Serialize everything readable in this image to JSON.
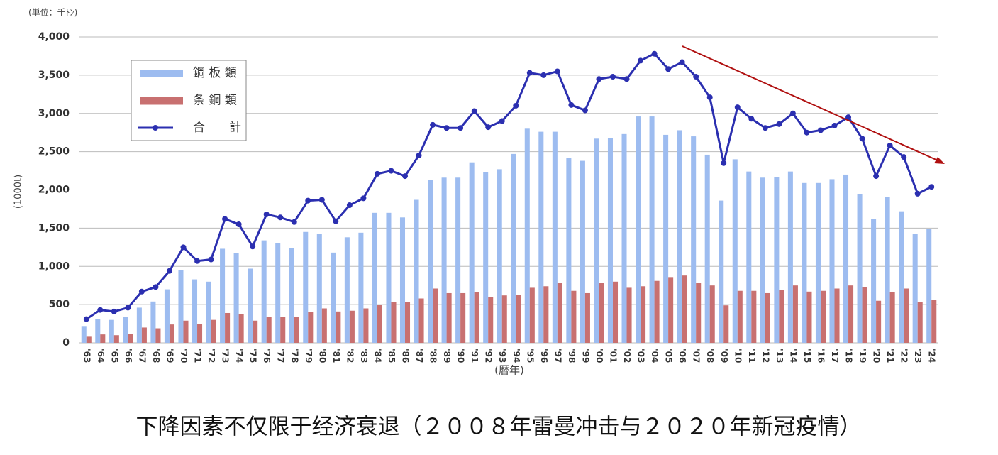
{
  "chart_data": {
    "type": "bar-line",
    "unit_note": "(単位：千ﾄﾝ)",
    "y_label": "(1000t)",
    "x_label": "(暦年)",
    "caption": "下降因素不仅限于经济衰退（２００８年雷曼冲击与２０２０年新冠疫情）",
    "categories": [
      "'63",
      "'64",
      "'65",
      "'66",
      "'67",
      "'68",
      "'69",
      "'70",
      "'71",
      "'72",
      "'73",
      "'74",
      "'75",
      "'76",
      "'77",
      "'78",
      "'79",
      "'80",
      "'81",
      "'82",
      "'83",
      "'84",
      "'85",
      "'86",
      "'87",
      "'88",
      "'89",
      "'90",
      "'91",
      "'92",
      "'93",
      "'94",
      "'95",
      "'96",
      "'97",
      "'98",
      "'99",
      "'00",
      "'01",
      "'02",
      "'03",
      "'04",
      "'05",
      "'06",
      "'07",
      "'08",
      "'09",
      "'10",
      "'11",
      "'12",
      "'13",
      "'14",
      "'15",
      "'16",
      "'17",
      "'18",
      "'19",
      "'20",
      "'21",
      "'22",
      "'23",
      "'24"
    ],
    "series": [
      {
        "name": "鋼 板 類",
        "color": "#9dbcf0",
        "kind": "bar",
        "values": [
          220,
          310,
          300,
          340,
          460,
          540,
          700,
          950,
          830,
          800,
          1230,
          1170,
          970,
          1340,
          1300,
          1240,
          1450,
          1420,
          1180,
          1380,
          1440,
          1700,
          1700,
          1640,
          1870,
          2130,
          2160,
          2160,
          2360,
          2230,
          2270,
          2470,
          2800,
          2760,
          2760,
          2420,
          2380,
          2670,
          2680,
          2730,
          2960,
          2960,
          2720,
          2780,
          2700,
          2460,
          1860,
          2400,
          2240,
          2160,
          2170,
          2240,
          2090,
          2090,
          2140,
          2200,
          1940,
          1620,
          1910,
          1720,
          1420,
          1490
        ]
      },
      {
        "name": "条 鋼 類",
        "color": "#c87070",
        "kind": "bar",
        "values": [
          80,
          110,
          100,
          120,
          200,
          190,
          240,
          290,
          250,
          300,
          390,
          380,
          290,
          340,
          340,
          340,
          400,
          450,
          410,
          420,
          450,
          500,
          530,
          530,
          580,
          710,
          650,
          650,
          660,
          600,
          620,
          630,
          720,
          740,
          780,
          680,
          650,
          780,
          800,
          720,
          740,
          810,
          860,
          880,
          780,
          750,
          490,
          680,
          680,
          650,
          690,
          750,
          670,
          680,
          710,
          750,
          730,
          550,
          660,
          710,
          530,
          560
        ]
      },
      {
        "name": "合　　計",
        "color": "#2b2fb0",
        "kind": "line",
        "values": [
          310,
          430,
          410,
          460,
          670,
          730,
          940,
          1250,
          1070,
          1090,
          1620,
          1550,
          1260,
          1680,
          1640,
          1580,
          1860,
          1870,
          1590,
          1800,
          1890,
          2210,
          2250,
          2180,
          2450,
          2850,
          2810,
          2810,
          3030,
          2820,
          2900,
          3100,
          3530,
          3500,
          3550,
          3110,
          3040,
          3450,
          3480,
          3450,
          3690,
          3780,
          3580,
          3670,
          3480,
          3210,
          2350,
          3080,
          2930,
          2810,
          2860,
          3000,
          2750,
          2780,
          2840,
          2950,
          2670,
          2180,
          2580,
          2430,
          1950,
          2040
        ]
      }
    ],
    "ylim": [
      0,
      4000
    ],
    "yticks": [
      0,
      500,
      {
        "value": 1000,
        "label": "1,000"
      },
      {
        "value": 1500,
        "label": "1,500"
      },
      {
        "value": 2000,
        "label": "2,000"
      },
      {
        "value": 2500,
        "label": "2,500"
      },
      {
        "value": 3000,
        "label": "3,000"
      },
      {
        "value": 3500,
        "label": "3,500"
      },
      {
        "value": 4000,
        "label": "4,000"
      }
    ],
    "grid": true
  }
}
